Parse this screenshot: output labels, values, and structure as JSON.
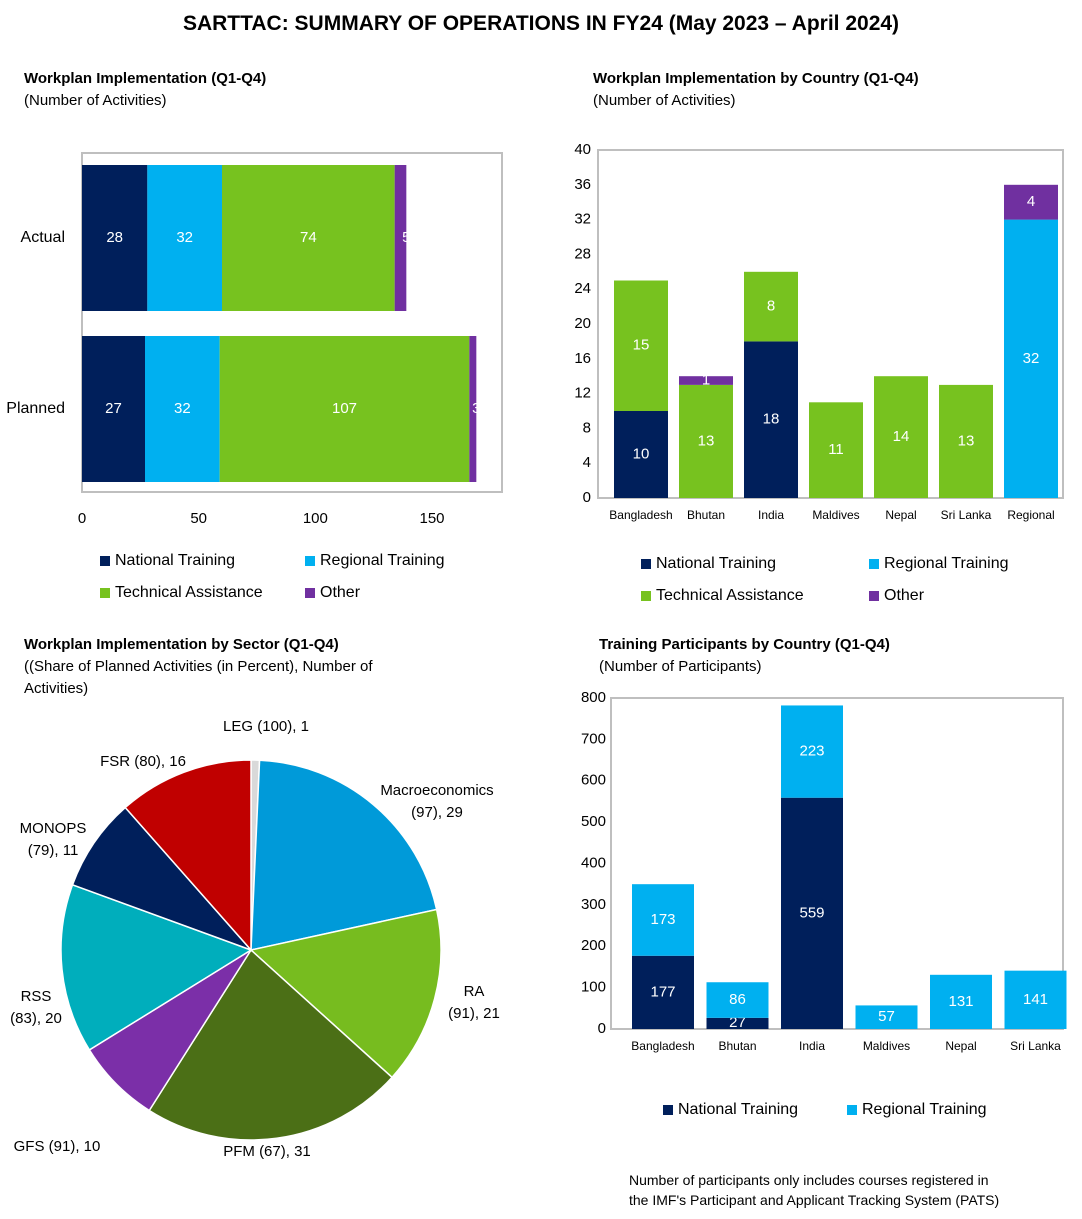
{
  "main_title": "SARTTAC: SUMMARY OF OPERATIONS IN FY24 (May 2023 – April 2024)",
  "colors": {
    "national_training": "#001f5b",
    "regional_training": "#00b0f0",
    "technical_assistance": "#77c21f",
    "other": "#7030a0"
  },
  "panel1": {
    "title": "Workplan Implementation (Q1-Q4)",
    "subtitle": "(Number of Activities)"
  },
  "panel2": {
    "title": "Workplan Implementation by Country (Q1-Q4)",
    "subtitle": "(Number of Activities)"
  },
  "panel3": {
    "title": "Workplan Implementation by Sector (Q1-Q4)",
    "subtitle_line1": "((Share of Planned Activities (in Percent), Number of",
    "subtitle_line2": "Activities)"
  },
  "panel4": {
    "title": "Training Participants by Country (Q1-Q4)",
    "subtitle": "(Number of Participants)"
  },
  "note_line1": "Number of participants only includes courses registered in",
  "note_line2": "the IMF's Participant and Applicant Tracking System (PATS)",
  "chart_data": [
    {
      "type": "bar",
      "orientation": "horizontal",
      "stacked": true,
      "title": "Workplan Implementation (Q1-Q4)",
      "categories": [
        "Actual",
        "Planned"
      ],
      "series": [
        {
          "name": "National Training",
          "values": [
            28,
            27
          ]
        },
        {
          "name": "Regional Training",
          "values": [
            32,
            32
          ]
        },
        {
          "name": "Technical Assistance",
          "values": [
            74,
            107
          ]
        },
        {
          "name": "Other",
          "values": [
            5,
            3
          ]
        }
      ],
      "xlim": [
        0,
        180
      ],
      "xticks": [
        0,
        50,
        100,
        150
      ],
      "legend": "bottom"
    },
    {
      "type": "bar",
      "stacked": true,
      "title": "Workplan Implementation by Country (Q1-Q4)",
      "categories": [
        "Bangladesh",
        "Bhutan",
        "India",
        "Maldives",
        "Nepal",
        "Sri Lanka",
        "Regional"
      ],
      "series": [
        {
          "name": "National Training",
          "values": [
            10,
            0,
            18,
            0,
            0,
            0,
            0
          ]
        },
        {
          "name": "Regional Training",
          "values": [
            0,
            0,
            0,
            0,
            0,
            0,
            32
          ]
        },
        {
          "name": "Technical Assistance",
          "values": [
            15,
            13,
            8,
            11,
            14,
            13,
            0
          ]
        },
        {
          "name": "Other",
          "values": [
            0,
            1,
            0,
            0,
            0,
            0,
            4
          ]
        }
      ],
      "ylim": [
        0,
        40
      ],
      "yticks": [
        0,
        4,
        8,
        12,
        16,
        20,
        24,
        28,
        32,
        36,
        40
      ],
      "legend": "bottom"
    },
    {
      "type": "pie",
      "title": "Workplan Implementation by Sector (Q1-Q4)",
      "slices": [
        {
          "label": "LEG (100), 1",
          "value": 1,
          "color": "#d9d9d9"
        },
        {
          "label": "Macroeconomics (97), 29",
          "value": 29,
          "color": "#009ad9"
        },
        {
          "label": "RA (91), 21",
          "value": 21,
          "color": "#77bc1f"
        },
        {
          "label": "PFM (67), 31",
          "value": 31,
          "color": "#4b6f16"
        },
        {
          "label": "GFS (91), 10",
          "value": 10,
          "color": "#7b2fa8"
        },
        {
          "label": "RSS (83), 20",
          "value": 20,
          "color": "#00aebc"
        },
        {
          "label": "MONOPS (79), 11",
          "value": 11,
          "color": "#001f5b"
        },
        {
          "label": "FSR (80), 16",
          "value": 16,
          "color": "#c00000"
        }
      ]
    },
    {
      "type": "bar",
      "stacked": true,
      "title": "Training Participants by Country (Q1-Q4)",
      "categories": [
        "Bangladesh",
        "Bhutan",
        "India",
        "Maldives",
        "Nepal",
        "Sri Lanka"
      ],
      "series": [
        {
          "name": "National Training",
          "values": [
            177,
            27,
            559,
            0,
            0,
            0
          ]
        },
        {
          "name": "Regional Training",
          "values": [
            173,
            86,
            223,
            57,
            131,
            141
          ]
        }
      ],
      "ylim": [
        0,
        800
      ],
      "yticks": [
        0,
        100,
        200,
        300,
        400,
        500,
        600,
        700,
        800
      ],
      "legend": "bottom"
    }
  ]
}
